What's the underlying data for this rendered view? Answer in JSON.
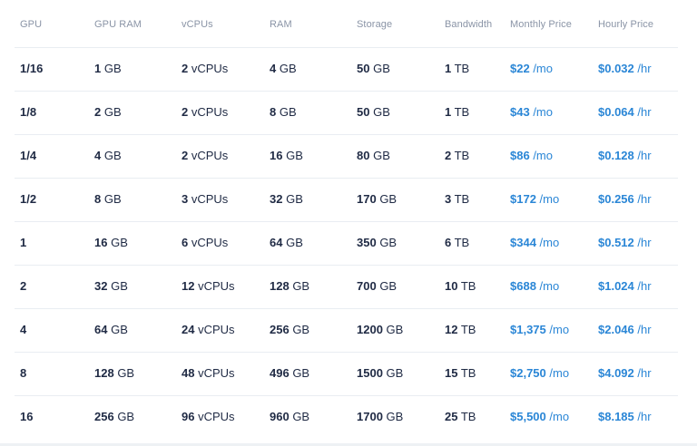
{
  "headers": {
    "gpu": "GPU",
    "gpu_ram": "GPU RAM",
    "vcpus": "vCPUs",
    "ram": "RAM",
    "storage": "Storage",
    "bandwidth": "Bandwidth",
    "monthly_price": "Monthly Price",
    "hourly_price": "Hourly Price"
  },
  "rows": [
    {
      "gpu": "1/16",
      "gpu_ram": {
        "n": "1",
        "u": " GB"
      },
      "vcpus": {
        "n": "2",
        "u": " vCPUs"
      },
      "ram": {
        "n": "4",
        "u": " GB"
      },
      "storage": {
        "n": "50",
        "u": " GB"
      },
      "bandwidth": {
        "n": "1",
        "u": " TB"
      },
      "monthly": {
        "n": "$22",
        "u": " /mo"
      },
      "hourly": {
        "n": "$0.032",
        "u": " /hr"
      }
    },
    {
      "gpu": "1/8",
      "gpu_ram": {
        "n": "2",
        "u": " GB"
      },
      "vcpus": {
        "n": "2",
        "u": " vCPUs"
      },
      "ram": {
        "n": "8",
        "u": " GB"
      },
      "storage": {
        "n": "50",
        "u": " GB"
      },
      "bandwidth": {
        "n": "1",
        "u": " TB"
      },
      "monthly": {
        "n": "$43",
        "u": " /mo"
      },
      "hourly": {
        "n": "$0.064",
        "u": " /hr"
      }
    },
    {
      "gpu": "1/4",
      "gpu_ram": {
        "n": "4",
        "u": " GB"
      },
      "vcpus": {
        "n": "2",
        "u": " vCPUs"
      },
      "ram": {
        "n": "16",
        "u": " GB"
      },
      "storage": {
        "n": "80",
        "u": " GB"
      },
      "bandwidth": {
        "n": "2",
        "u": " TB"
      },
      "monthly": {
        "n": "$86",
        "u": " /mo"
      },
      "hourly": {
        "n": "$0.128",
        "u": " /hr"
      }
    },
    {
      "gpu": "1/2",
      "gpu_ram": {
        "n": "8",
        "u": " GB"
      },
      "vcpus": {
        "n": "3",
        "u": " vCPUs"
      },
      "ram": {
        "n": "32",
        "u": " GB"
      },
      "storage": {
        "n": "170",
        "u": " GB"
      },
      "bandwidth": {
        "n": "3",
        "u": " TB"
      },
      "monthly": {
        "n": "$172",
        "u": " /mo"
      },
      "hourly": {
        "n": "$0.256",
        "u": " /hr"
      }
    },
    {
      "gpu": "1",
      "gpu_ram": {
        "n": "16",
        "u": " GB"
      },
      "vcpus": {
        "n": "6",
        "u": " vCPUs"
      },
      "ram": {
        "n": "64",
        "u": " GB"
      },
      "storage": {
        "n": "350",
        "u": " GB"
      },
      "bandwidth": {
        "n": "6",
        "u": " TB"
      },
      "monthly": {
        "n": "$344",
        "u": " /mo"
      },
      "hourly": {
        "n": "$0.512",
        "u": " /hr"
      }
    },
    {
      "gpu": "2",
      "gpu_ram": {
        "n": "32",
        "u": " GB"
      },
      "vcpus": {
        "n": "12",
        "u": " vCPUs"
      },
      "ram": {
        "n": "128",
        "u": " GB"
      },
      "storage": {
        "n": "700",
        "u": " GB"
      },
      "bandwidth": {
        "n": "10",
        "u": " TB"
      },
      "monthly": {
        "n": "$688",
        "u": " /mo"
      },
      "hourly": {
        "n": "$1.024",
        "u": " /hr"
      }
    },
    {
      "gpu": "4",
      "gpu_ram": {
        "n": "64",
        "u": " GB"
      },
      "vcpus": {
        "n": "24",
        "u": " vCPUs"
      },
      "ram": {
        "n": "256",
        "u": " GB"
      },
      "storage": {
        "n": "1200",
        "u": " GB"
      },
      "bandwidth": {
        "n": "12",
        "u": " TB"
      },
      "monthly": {
        "n": "$1,375",
        "u": " /mo"
      },
      "hourly": {
        "n": "$2.046",
        "u": " /hr"
      }
    },
    {
      "gpu": "8",
      "gpu_ram": {
        "n": "128",
        "u": " GB"
      },
      "vcpus": {
        "n": "48",
        "u": " vCPUs"
      },
      "ram": {
        "n": "496",
        "u": " GB"
      },
      "storage": {
        "n": "1500",
        "u": " GB"
      },
      "bandwidth": {
        "n": "15",
        "u": " TB"
      },
      "monthly": {
        "n": "$2,750",
        "u": " /mo"
      },
      "hourly": {
        "n": "$4.092",
        "u": " /hr"
      }
    },
    {
      "gpu": "16",
      "gpu_ram": {
        "n": "256",
        "u": " GB"
      },
      "vcpus": {
        "n": "96",
        "u": " vCPUs"
      },
      "ram": {
        "n": "960",
        "u": " GB"
      },
      "storage": {
        "n": "1700",
        "u": " GB"
      },
      "bandwidth": {
        "n": "25",
        "u": " TB"
      },
      "monthly": {
        "n": "$5,500",
        "u": " /mo"
      },
      "hourly": {
        "n": "$8.185",
        "u": " /hr"
      }
    }
  ],
  "colors": {
    "text": "#1f2a44",
    "header": "#8a94a6",
    "price": "#2a86d6",
    "divider": "#e9edf2"
  }
}
